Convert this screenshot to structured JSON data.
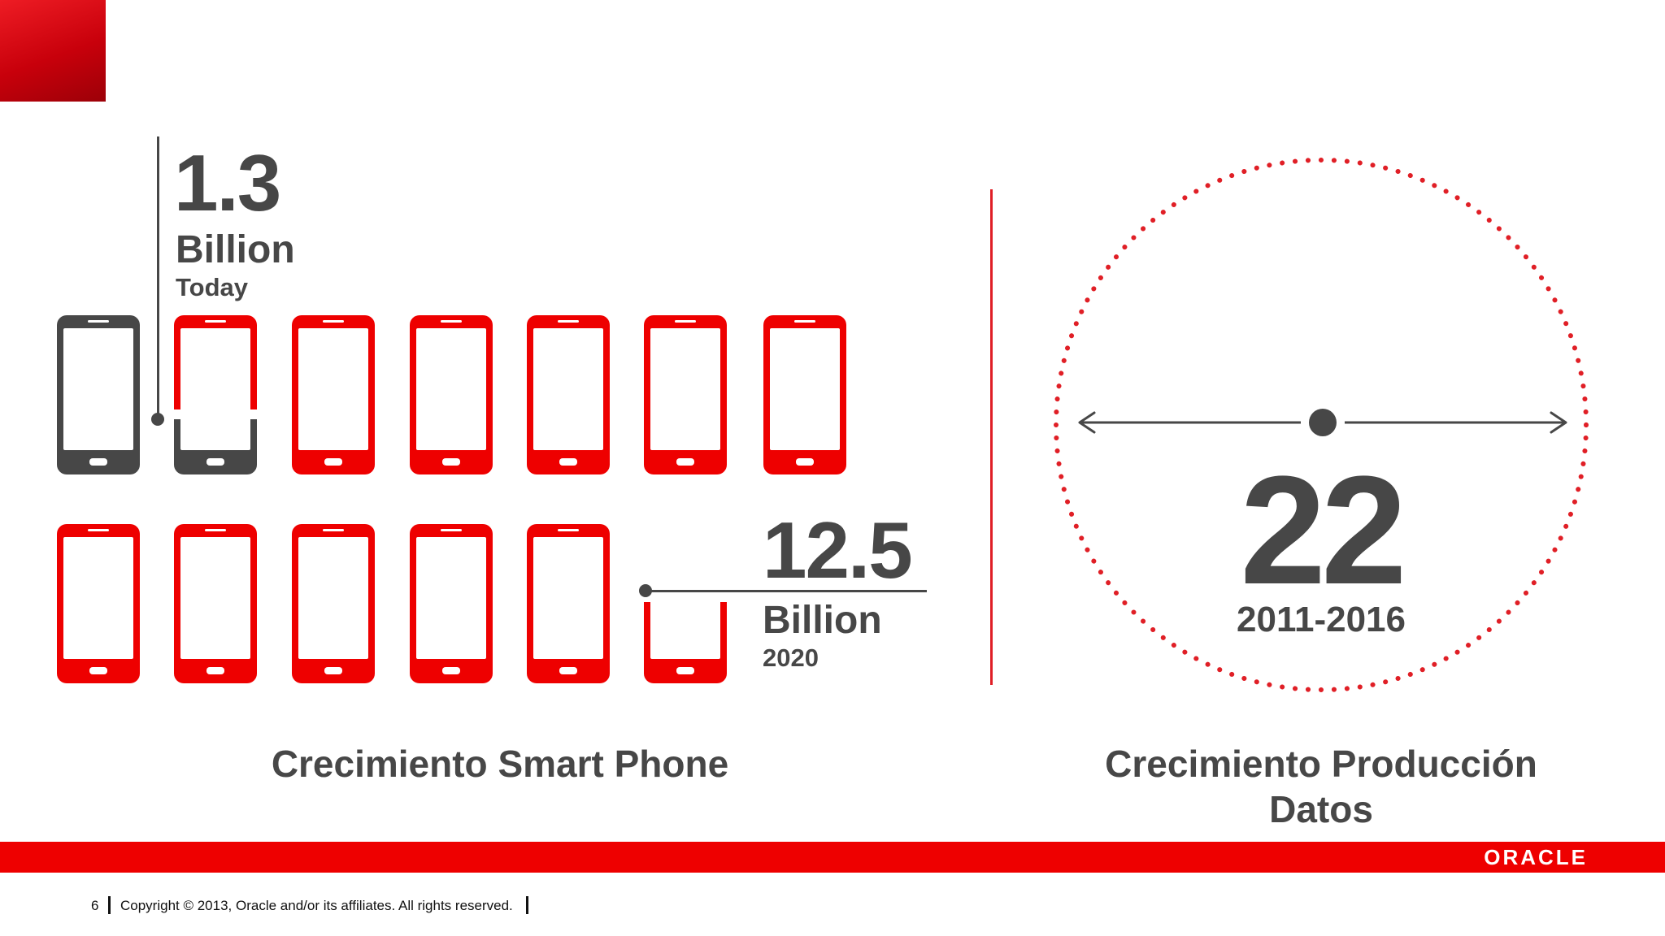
{
  "left_panel": {
    "today": {
      "number": "1.3",
      "unit": "Billion",
      "label": "Today"
    },
    "future": {
      "number": "12.5",
      "unit": "Billion",
      "label": "2020"
    },
    "caption": "Crecimiento Smart Phone"
  },
  "right_panel": {
    "number": "22",
    "range": "2011-2016",
    "caption_line1": "Crecimiento Producción",
    "caption_line2": "Datos"
  },
  "footer": {
    "logo": "ORACLE",
    "page_number": "6",
    "copyright": "Copyright © 2013, Oracle and/or its affiliates. All rights reserved."
  },
  "colors": {
    "accent": "#ee0000",
    "text": "#474747"
  },
  "icons": {
    "phone": "smartphone-icon",
    "arrow": "double-arrow-icon"
  }
}
